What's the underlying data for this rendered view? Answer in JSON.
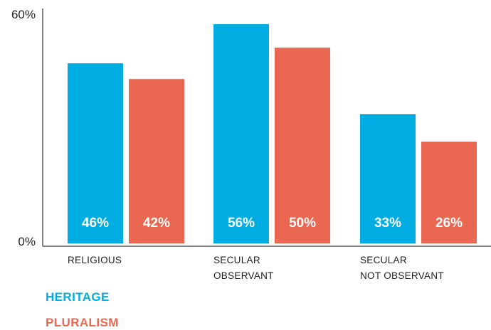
{
  "chart_data": {
    "type": "bar",
    "categories": [
      [
        "RELIGIOUS"
      ],
      [
        "SECULAR",
        "OBSERVANT"
      ],
      [
        "SECULAR",
        "NOT OBSERVANT"
      ]
    ],
    "series": [
      {
        "name": "HERITAGE",
        "color": "#00ade2",
        "values": [
          46,
          56,
          33
        ],
        "labels": [
          "46%",
          "56%",
          "33%"
        ]
      },
      {
        "name": "PLURALISM",
        "color": "#ea6851",
        "values": [
          42,
          50,
          26
        ],
        "labels": [
          "42%",
          "50%",
          "26%"
        ]
      }
    ],
    "ylim": [
      0,
      60
    ],
    "y_ticks": [
      "0%",
      "60%"
    ],
    "grid": false,
    "legend": "bottom-left"
  }
}
